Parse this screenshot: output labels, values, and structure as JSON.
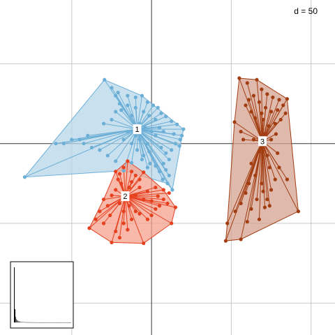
{
  "chart_data": {
    "type": "scatter",
    "subtype": "cluster-star-plot",
    "scale_label": "d = 50",
    "xlim": [
      -190,
      230
    ],
    "ylim": [
      -240,
      180
    ],
    "grid": true,
    "grid_step": 100,
    "colors": {
      "1": "#6baed6",
      "2": "#e6401f",
      "3": "#a23d12",
      "hull_1": "#b7d7ea",
      "hull_2": "#f5a18d",
      "hull_3": "#d4a390"
    },
    "clusters": [
      {
        "label": "1",
        "center": [
          -18,
          18
        ],
        "hull": [
          [
            -59,
            80
          ],
          [
            -12,
            60
          ],
          [
            40,
            18
          ],
          [
            26,
            -58
          ],
          [
            20,
            -50
          ],
          [
            -35,
            -34
          ],
          [
            -159,
            -42
          ]
        ],
        "points": [
          [
            -59,
            80
          ],
          [
            -50,
            70
          ],
          [
            -42,
            64
          ],
          [
            -30,
            60
          ],
          [
            -20,
            58
          ],
          [
            -12,
            60
          ],
          [
            -5,
            52
          ],
          [
            2,
            48
          ],
          [
            8,
            45
          ],
          [
            12,
            38
          ],
          [
            18,
            34
          ],
          [
            25,
            28
          ],
          [
            32,
            24
          ],
          [
            40,
            18
          ],
          [
            38,
            10
          ],
          [
            36,
            5
          ],
          [
            30,
            0
          ],
          [
            35,
            -3
          ],
          [
            25,
            -8
          ],
          [
            18,
            -12
          ],
          [
            22,
            -20
          ],
          [
            15,
            -25
          ],
          [
            18,
            -33
          ],
          [
            22,
            -40
          ],
          [
            26,
            -58
          ],
          [
            20,
            -50
          ],
          [
            14,
            -45
          ],
          [
            10,
            -35
          ],
          [
            5,
            -28
          ],
          [
            -2,
            -25
          ],
          [
            -5,
            -30
          ],
          [
            -12,
            -20
          ],
          [
            -25,
            -24
          ],
          [
            -35,
            -34
          ],
          [
            -45,
            -22
          ],
          [
            -55,
            -15
          ],
          [
            -65,
            -8
          ],
          [
            -75,
            -5
          ],
          [
            -85,
            0
          ],
          [
            -90,
            5
          ],
          [
            -80,
            10
          ],
          [
            -100,
            5
          ],
          [
            -110,
            0
          ],
          [
            -120,
            0
          ],
          [
            -159,
            -42
          ],
          [
            -60,
            25
          ],
          [
            -50,
            30
          ],
          [
            -45,
            40
          ],
          [
            -38,
            42
          ],
          [
            -30,
            48
          ],
          [
            -25,
            35
          ],
          [
            -10,
            40
          ],
          [
            -3,
            35
          ],
          [
            5,
            30
          ],
          [
            -15,
            25
          ],
          [
            -8,
            20
          ],
          [
            0,
            15
          ],
          [
            5,
            10
          ],
          [
            -20,
            10
          ],
          [
            -30,
            15
          ],
          [
            -35,
            5
          ],
          [
            -25,
            0
          ],
          [
            -15,
            5
          ],
          [
            -5,
            0
          ],
          [
            10,
            20
          ],
          [
            15,
            15
          ],
          [
            -40,
            50
          ],
          [
            -45,
            60
          ],
          [
            -20,
            45
          ],
          [
            28,
            12
          ],
          [
            12,
            -5
          ],
          [
            -3,
            -10
          ],
          [
            -18,
            -8
          ],
          [
            -10,
            -15
          ]
        ]
      },
      {
        "label": "2",
        "center": [
          -33,
          -66
        ],
        "hull": [
          [
            -30,
            -22
          ],
          [
            -10,
            -36
          ],
          [
            15,
            -58
          ],
          [
            30,
            -80
          ],
          [
            25,
            -100
          ],
          [
            -10,
            -125
          ],
          [
            -50,
            -124
          ],
          [
            -78,
            -106
          ],
          [
            -60,
            -70
          ],
          [
            -45,
            -35
          ]
        ],
        "points": [
          [
            -30,
            -22
          ],
          [
            -35,
            -30
          ],
          [
            -40,
            -38
          ],
          [
            -45,
            -35
          ],
          [
            -25,
            -35
          ],
          [
            -20,
            -40
          ],
          [
            -10,
            -36
          ],
          [
            -15,
            -45
          ],
          [
            -25,
            -48
          ],
          [
            -38,
            -50
          ],
          [
            -28,
            -55
          ],
          [
            -45,
            -58
          ],
          [
            -50,
            -65
          ],
          [
            -60,
            -70
          ],
          [
            -55,
            -78
          ],
          [
            -65,
            -85
          ],
          [
            -70,
            -95
          ],
          [
            -78,
            -106
          ],
          [
            -60,
            -100
          ],
          [
            -50,
            -124
          ],
          [
            -45,
            -110
          ],
          [
            -40,
            -118
          ],
          [
            -35,
            -100
          ],
          [
            -30,
            -108
          ],
          [
            -25,
            -95
          ],
          [
            -20,
            -85
          ],
          [
            -10,
            -125
          ],
          [
            -15,
            -88
          ],
          [
            -5,
            -95
          ],
          [
            0,
            -90
          ],
          [
            5,
            -82
          ],
          [
            10,
            -78
          ],
          [
            15,
            -70
          ],
          [
            20,
            -75
          ],
          [
            25,
            -100
          ],
          [
            30,
            -80
          ],
          [
            22,
            -62
          ],
          [
            15,
            -58
          ],
          [
            8,
            -66
          ],
          [
            0,
            -72
          ],
          [
            -10,
            -70
          ],
          [
            -20,
            -65
          ],
          [
            -40,
            -75
          ],
          [
            -35,
            -85
          ],
          [
            -5,
            -60
          ],
          [
            5,
            -55
          ],
          [
            -15,
            -55
          ],
          [
            -42,
            -45
          ],
          [
            -52,
            -90
          ],
          [
            -28,
            -78
          ]
        ]
      },
      {
        "label": "3",
        "center": [
          139,
          3
        ],
        "hull": [
          [
            110,
            82
          ],
          [
            132,
            80
          ],
          [
            170,
            56
          ],
          [
            184,
            -85
          ],
          [
            112,
            -120
          ],
          [
            93,
            -122
          ],
          [
            95,
            -100
          ],
          [
            104,
            27
          ]
        ],
        "points": [
          [
            110,
            82
          ],
          [
            120,
            76
          ],
          [
            132,
            80
          ],
          [
            138,
            68
          ],
          [
            145,
            62
          ],
          [
            152,
            58
          ],
          [
            160,
            55
          ],
          [
            170,
            56
          ],
          [
            165,
            48
          ],
          [
            158,
            42
          ],
          [
            150,
            40
          ],
          [
            143,
            45
          ],
          [
            135,
            52
          ],
          [
            128,
            60
          ],
          [
            122,
            55
          ],
          [
            118,
            48
          ],
          [
            125,
            40
          ],
          [
            130,
            32
          ],
          [
            140,
            30
          ],
          [
            147,
            22
          ],
          [
            155,
            25
          ],
          [
            162,
            30
          ],
          [
            168,
            38
          ],
          [
            104,
            27
          ],
          [
            115,
            5
          ],
          [
            135,
            -10
          ],
          [
            125,
            -25
          ],
          [
            130,
            -40
          ],
          [
            122,
            -50
          ],
          [
            118,
            -62
          ],
          [
            112,
            -75
          ],
          [
            105,
            -85
          ],
          [
            95,
            -100
          ],
          [
            93,
            -122
          ],
          [
            112,
            -120
          ],
          [
            120,
            -98
          ],
          [
            135,
            -95
          ],
          [
            142,
            -80
          ],
          [
            145,
            -70
          ],
          [
            150,
            -58
          ],
          [
            155,
            -45
          ],
          [
            140,
            -60
          ],
          [
            138,
            -50
          ],
          [
            148,
            -30
          ],
          [
            160,
            -30
          ],
          [
            170,
            -45
          ],
          [
            184,
            -85
          ],
          [
            158,
            -12
          ],
          [
            128,
            5
          ],
          [
            142,
            12
          ],
          [
            150,
            5
          ],
          [
            145,
            -15
          ],
          [
            132,
            -70
          ],
          [
            148,
            -78
          ],
          [
            125,
            -82
          ],
          [
            112,
            15
          ],
          [
            138,
            38
          ],
          [
            156,
            12
          ]
        ]
      }
    ],
    "inset": {
      "type": "bar",
      "description_values": [
        100,
        24,
        10,
        6,
        4,
        3,
        2,
        2,
        1.5,
        1,
        1,
        0.8,
        0.8,
        0.6,
        0.6,
        0.5,
        0.5,
        0.4,
        0.4,
        0.4,
        0.3,
        0.3,
        0.3,
        0.3,
        0.2,
        0.2,
        0.2,
        0.2,
        0.2,
        0.2,
        0.1,
        0.1,
        0.1,
        0.1,
        0.1,
        0.1,
        0.1,
        0.1,
        0.1,
        0.1,
        0.1,
        0.1,
        0.1,
        0.1,
        0.1,
        0.1,
        0.1,
        0.1,
        0.1,
        0.1,
        0.1,
        0.1,
        0.1,
        0.1,
        0.1,
        0.1,
        0.1,
        0.1,
        0.1,
        0.1,
        0.1,
        0.1,
        0.1,
        0.1,
        0.1,
        0.1,
        0.1,
        0.1,
        0.1,
        0.1,
        0.1,
        0.1,
        0.1,
        0.1,
        0.1,
        0.1,
        0.1,
        0.1,
        0.1,
        0.1
      ],
      "highlight_first": 2
    }
  }
}
